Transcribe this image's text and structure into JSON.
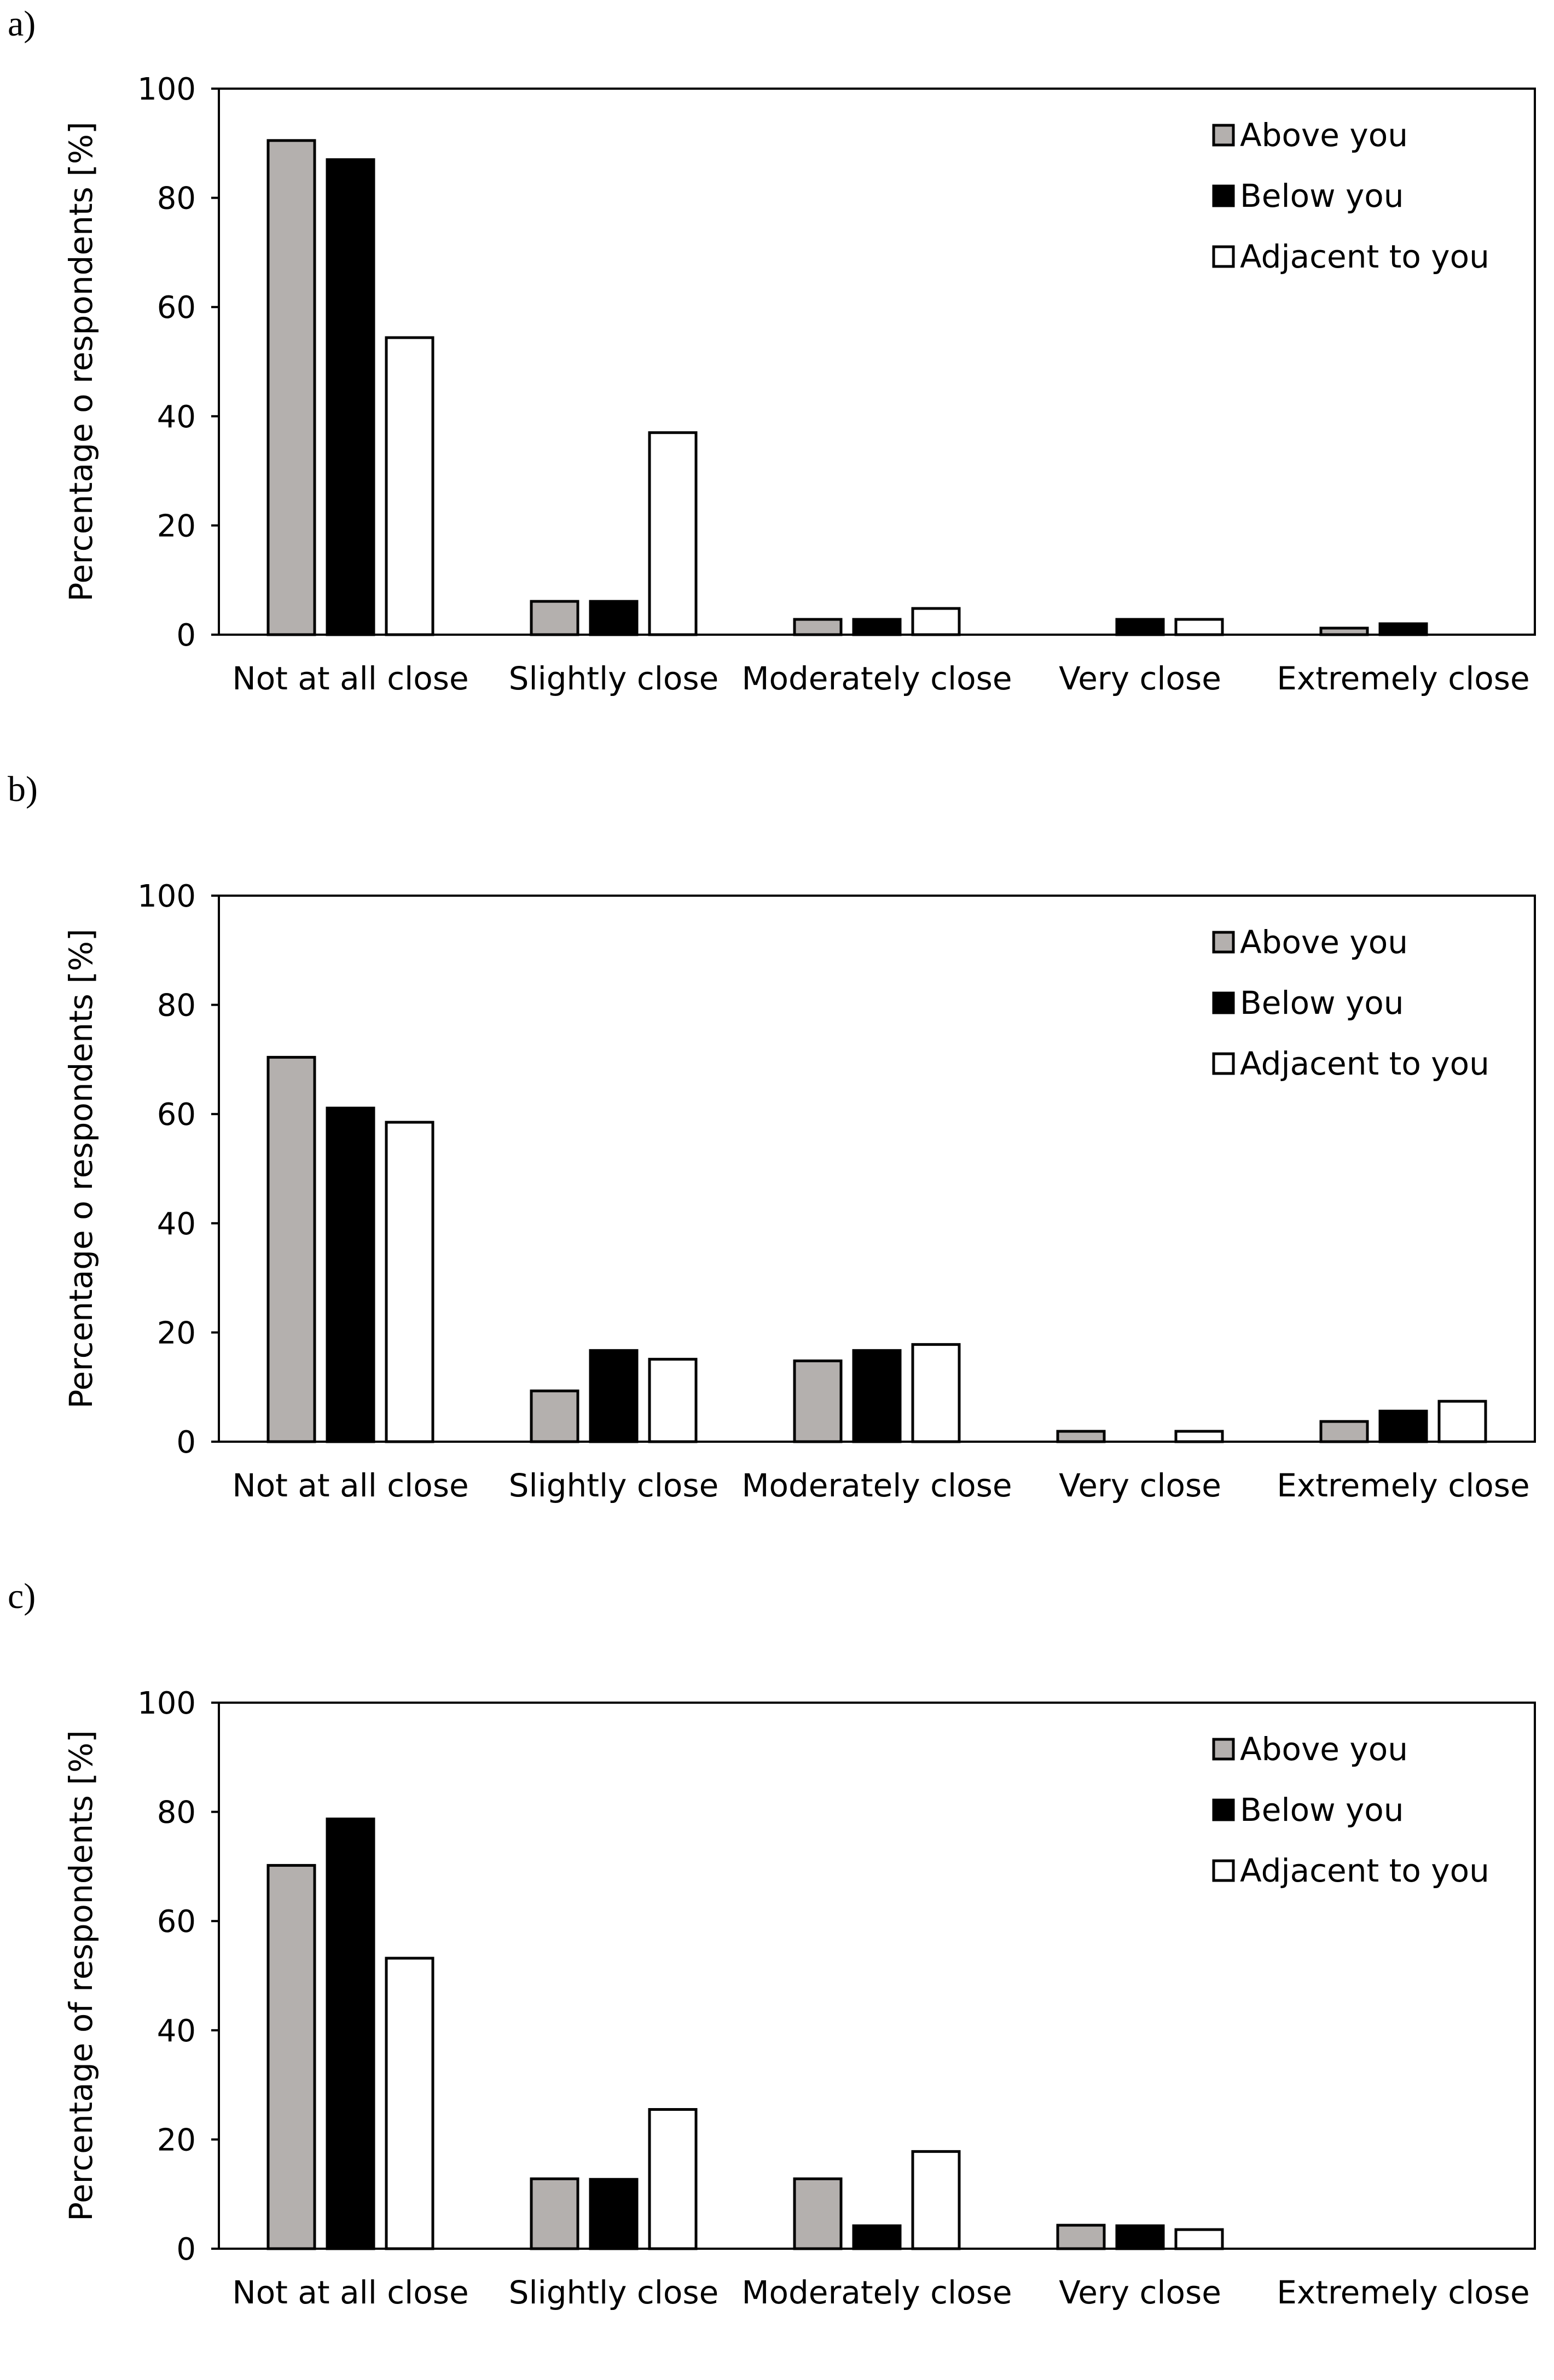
{
  "colors": {
    "Above you": "#b4b0ae",
    "Below you": "#000000",
    "Adjacent to you": "#ffffff"
  },
  "chart_data": [
    {
      "panel": "a)",
      "type": "bar",
      "ylabel": "Percentage o respondents [%]",
      "ylim": [
        0,
        100
      ],
      "yticks": [
        "0",
        "20",
        "40",
        "60",
        "80",
        "100"
      ],
      "categories": [
        "Not at all close",
        "Slightly close",
        "Moderately close",
        "Very close",
        "Extremely close"
      ],
      "legend_position": "top-right",
      "series": [
        {
          "name": "Above you",
          "values": [
            90.5,
            6.1,
            2.8,
            0,
            1.2
          ]
        },
        {
          "name": "Below you",
          "values": [
            87.0,
            6.1,
            2.8,
            2.8,
            2.0
          ]
        },
        {
          "name": "Adjacent to you",
          "values": [
            54.4,
            37.0,
            4.8,
            2.8,
            0
          ]
        }
      ]
    },
    {
      "panel": "b)",
      "type": "bar",
      "ylabel": "Percentage o respondents [%]",
      "ylim": [
        0,
        100
      ],
      "yticks": [
        "0",
        "20",
        "40",
        "60",
        "80",
        "100"
      ],
      "categories": [
        "Not at all close",
        "Slightly close",
        "Moderately close",
        "Very close",
        "Extremely close"
      ],
      "legend_position": "top-right",
      "series": [
        {
          "name": "Above you",
          "values": [
            70.4,
            9.3,
            14.8,
            1.9,
            3.7
          ]
        },
        {
          "name": "Below you",
          "values": [
            61.1,
            16.7,
            16.7,
            0,
            5.6
          ]
        },
        {
          "name": "Adjacent to you",
          "values": [
            58.5,
            15.1,
            17.8,
            1.9,
            7.4
          ]
        }
      ]
    },
    {
      "panel": "c)",
      "type": "bar",
      "ylabel": "Percentage of respondents [%]",
      "ylim": [
        0,
        100
      ],
      "yticks": [
        "0",
        "20",
        "40",
        "60",
        "80",
        "100"
      ],
      "categories": [
        "Not at all close",
        "Slightly close",
        "Moderately close",
        "Very close",
        "Extremely close"
      ],
      "legend_position": "top-right",
      "series": [
        {
          "name": "Above you",
          "values": [
            70.2,
            12.8,
            12.8,
            4.3,
            0
          ]
        },
        {
          "name": "Below you",
          "values": [
            78.7,
            12.7,
            4.2,
            4.2,
            0
          ]
        },
        {
          "name": "Adjacent to you",
          "values": [
            53.2,
            25.5,
            17.8,
            3.5,
            0
          ]
        }
      ]
    }
  ]
}
